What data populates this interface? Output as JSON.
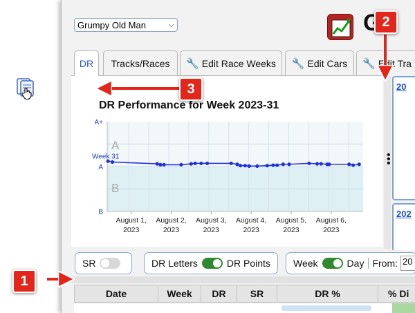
{
  "header": {
    "driver_select": "Grumpy Old Man",
    "title_fragment": "G"
  },
  "tabs": [
    {
      "label": "DR",
      "active": true,
      "icon": ""
    },
    {
      "label": "Tracks/Races",
      "active": false,
      "icon": ""
    },
    {
      "label": "Edit Race Weeks",
      "active": false,
      "icon": "wrench-icon"
    },
    {
      "label": "Edit Cars",
      "active": false,
      "icon": "wrench-icon"
    },
    {
      "label": "Edit Tra",
      "active": false,
      "icon": "wrench-icon"
    }
  ],
  "chart_data": {
    "type": "line",
    "title": "DR Performance for Week 2023-31",
    "y_ticks": [
      "A+",
      "A",
      "B"
    ],
    "band_labels": [
      "A",
      "B"
    ],
    "series_marker": "Week 31",
    "x_ticks": [
      {
        "day": "August 1,",
        "year": "2023"
      },
      {
        "day": "August 2,",
        "year": "2023"
      },
      {
        "day": "August 3,",
        "year": "2023"
      },
      {
        "day": "August 4,",
        "year": "2023"
      },
      {
        "day": "August 5,",
        "year": "2023"
      },
      {
        "day": "August 6,",
        "year": "2023"
      }
    ],
    "x_range_days": [
      0,
      6.4
    ],
    "y_range": [
      0,
      1
    ],
    "x": [
      0.02,
      0.13,
      1.25,
      1.33,
      1.42,
      1.85,
      2.1,
      2.2,
      2.35,
      2.5,
      3.1,
      3.25,
      3.33,
      3.45,
      3.55,
      3.75,
      4.0,
      4.15,
      4.25,
      4.4,
      4.55,
      5.05,
      5.25,
      5.35,
      5.5,
      5.55,
      6.05,
      6.15,
      6.3
    ],
    "y": [
      0.56,
      0.55,
      0.53,
      0.52,
      0.52,
      0.52,
      0.53,
      0.535,
      0.535,
      0.535,
      0.535,
      0.525,
      0.51,
      0.51,
      0.505,
      0.505,
      0.51,
      0.515,
      0.515,
      0.525,
      0.525,
      0.535,
      0.53,
      0.53,
      0.525,
      0.525,
      0.525,
      0.515,
      0.525
    ],
    "grid": true,
    "colors": {
      "line": "#2330d8",
      "band_upper": "#f2f8fa",
      "band_lower": "#dff0f4"
    }
  },
  "right_panel": {
    "link": "20",
    "link2": "202"
  },
  "toolbar": {
    "sr_label": "SR",
    "dr_letters_label": "DR Letters",
    "dr_points_label": "DR Points",
    "week_label": "Week",
    "day_label": "Day",
    "from_label": "From:",
    "from_value": "20"
  },
  "table": {
    "headers": [
      "Date",
      "Week",
      "DR",
      "SR",
      "DR %",
      "% Di"
    ]
  },
  "callouts": [
    "1",
    "2",
    "3"
  ],
  "colors": {
    "callout": "#e3261c",
    "accent": "#2a54c8",
    "toggle_on": "#2f8a2f"
  }
}
